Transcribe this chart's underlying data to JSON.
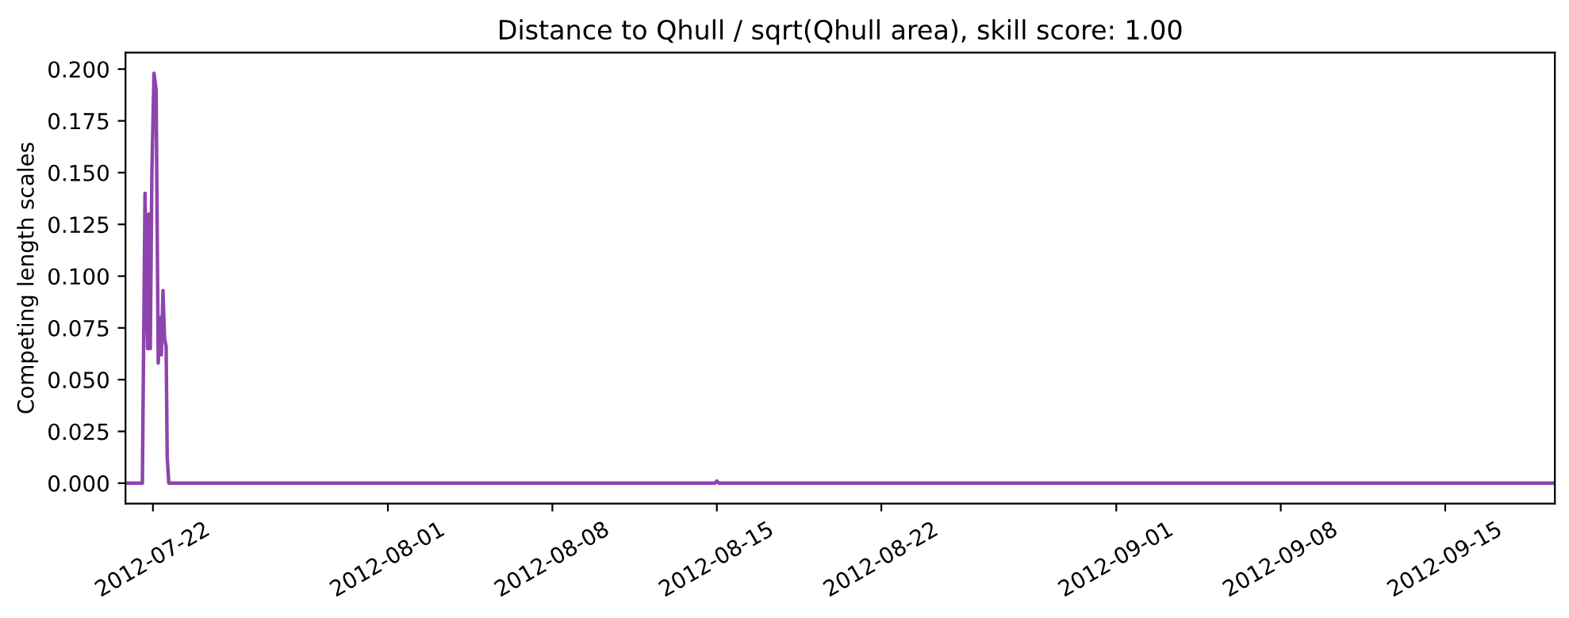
{
  "chart_data": {
    "type": "line",
    "title": "Distance to Qhull / sqrt(Qhull area), skill score: 1.00",
    "ylabel": "Competing length scales",
    "x": [
      "2012-07-20T20:00",
      "2012-07-21T13:12",
      "2012-07-21T15:55",
      "2012-07-21T17:00",
      "2012-07-21T18:40",
      "2012-07-21T19:40",
      "2012-07-21T21:18",
      "2012-07-21T22:55",
      "2012-07-22T01:05",
      "2012-07-22T03:15",
      "2012-07-22T05:24",
      "2012-07-22T07:34",
      "2012-07-22T08:38",
      "2012-07-22T10:15",
      "2012-07-22T11:53",
      "2012-07-22T13:29",
      "2012-07-22T14:34",
      "2012-07-22T16:12",
      "2012-08-14T22:00",
      "2012-08-15T00:00",
      "2012-08-15T02:00",
      "2012-09-19T16:00"
    ],
    "series": [
      {
        "color": "#8e44ad",
        "values": [
          0.0,
          0.0,
          0.14,
          0.1,
          0.065,
          0.13,
          0.065,
          0.15,
          0.198,
          0.19,
          0.058,
          0.08,
          0.062,
          0.093,
          0.07,
          0.066,
          0.013,
          0.0,
          0.0,
          0.001,
          0.0,
          0.0
        ]
      }
    ],
    "xlim": [
      "2012-07-20T20:00",
      "2012-09-19T16:00"
    ],
    "xticks": [
      "2012-07-22",
      "2012-08-01",
      "2012-08-08",
      "2012-08-15",
      "2012-08-22",
      "2012-09-01",
      "2012-09-08",
      "2012-09-15"
    ],
    "ylim": [
      -0.0099,
      0.208
    ],
    "yticks": [
      {
        "value": 0,
        "label": "0.000"
      },
      {
        "value": 0.025,
        "label": "0.025"
      },
      {
        "value": 0.05,
        "label": "0.050"
      },
      {
        "value": 0.075,
        "label": "0.075"
      },
      {
        "value": 0.1,
        "label": "0.100"
      },
      {
        "value": 0.125,
        "label": "0.125"
      },
      {
        "value": 0.15,
        "label": "0.150"
      },
      {
        "value": 0.175,
        "label": "0.175"
      },
      {
        "value": 0.2,
        "label": "0.200"
      }
    ],
    "grid": false,
    "legend": false
  }
}
